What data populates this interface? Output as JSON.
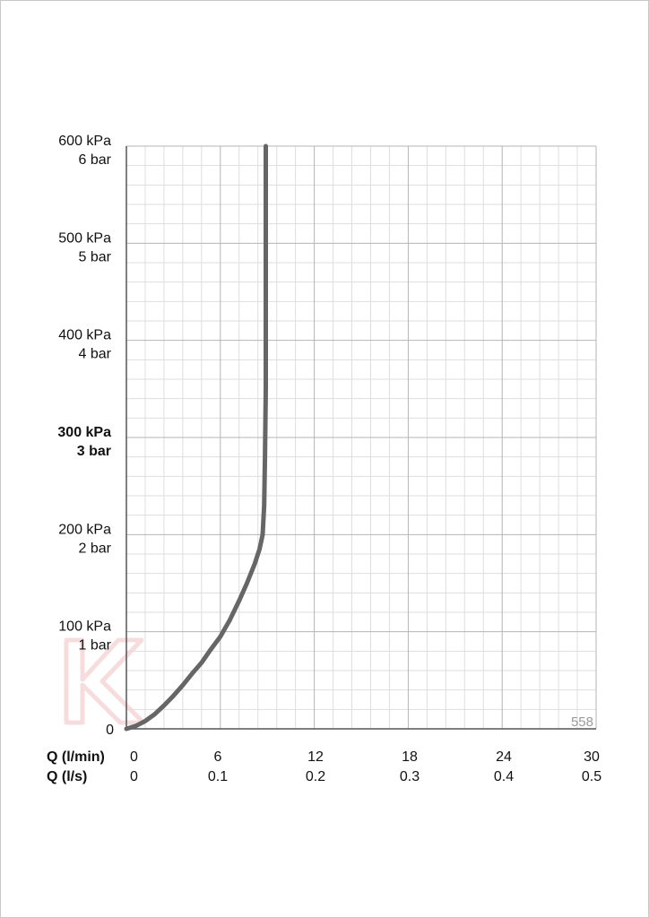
{
  "chart_data": {
    "type": "line",
    "title": "",
    "x_axes": [
      {
        "label": "Q (l/min)",
        "ticks": [
          "0",
          "6",
          "12",
          "18",
          "24",
          "30"
        ],
        "range": [
          0,
          30
        ]
      },
      {
        "label": "Q (l/s)",
        "ticks": [
          "0",
          "0.1",
          "0.2",
          "0.3",
          "0.4",
          "0.5"
        ],
        "range": [
          0,
          0.5
        ]
      }
    ],
    "y_axis": {
      "range": [
        0,
        600
      ],
      "unit": "kPa",
      "ticks": [
        {
          "value": 0,
          "kpa": "0",
          "bar": ""
        },
        {
          "value": 100,
          "kpa": "100 kPa",
          "bar": "1 bar"
        },
        {
          "value": 200,
          "kpa": "200 kPa",
          "bar": "2 bar"
        },
        {
          "value": 300,
          "kpa": "300 kPa",
          "bar": "3 bar",
          "bold": true
        },
        {
          "value": 400,
          "kpa": "400 kPa",
          "bar": "4 bar"
        },
        {
          "value": 500,
          "kpa": "500 kPa",
          "bar": "5 bar"
        },
        {
          "value": 600,
          "kpa": "600 kPa",
          "bar": "6 bar"
        }
      ]
    },
    "grid": true,
    "minor_per_major": 5,
    "series": [
      {
        "color": "#666666",
        "x": [
          0,
          0.6,
          1.2,
          1.8,
          2.4,
          3.0,
          3.6,
          4.2,
          4.8,
          5.4,
          6.0,
          6.6,
          7.2,
          7.7,
          8.2,
          8.5,
          8.7,
          8.8,
          8.85,
          8.9,
          8.9,
          8.9,
          8.9,
          8.9
        ],
        "y": [
          0,
          3,
          8,
          15,
          24,
          34,
          45,
          57,
          68,
          82,
          95,
          112,
          132,
          150,
          170,
          185,
          200,
          230,
          280,
          350,
          420,
          480,
          550,
          600
        ]
      }
    ],
    "annotation": "558"
  },
  "colors": {
    "grid_minor": "#dedede",
    "grid_major": "#b4b4b4",
    "axis": "#555555",
    "watermark": "#f6dcdc"
  }
}
